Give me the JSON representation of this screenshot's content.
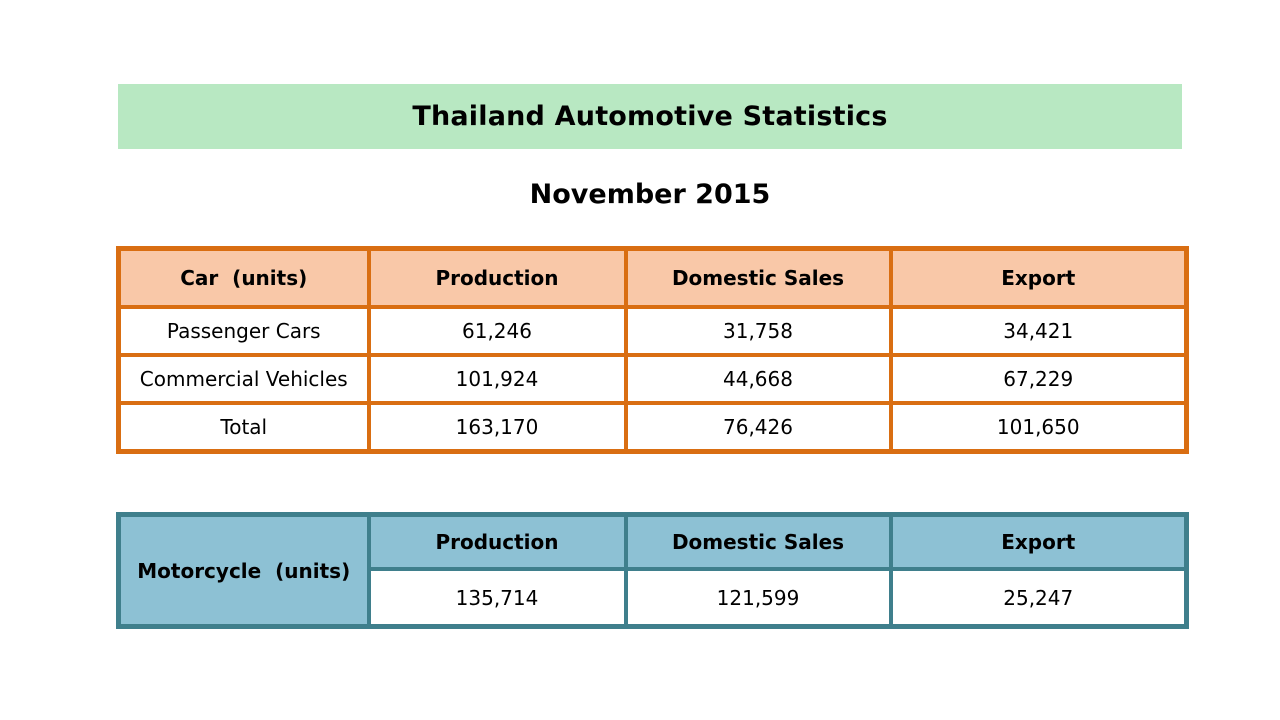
{
  "title": "Thailand Automotive Statistics",
  "period": "November 2015",
  "car_table": {
    "headers": [
      "Car  (units)",
      "Production",
      "Domestic Sales",
      "Export"
    ],
    "rows": [
      {
        "label": "Passenger Cars",
        "production": "61,246",
        "domestic_sales": "31,758",
        "export": "34,421"
      },
      {
        "label": "Commercial Vehicles",
        "production": "101,924",
        "domestic_sales": "44,668",
        "export": "67,229"
      },
      {
        "label": "Total",
        "production": "163,170",
        "domestic_sales": "76,426",
        "export": "101,650"
      }
    ]
  },
  "motorcycle_table": {
    "label": "Motorcycle  (units)",
    "headers": [
      "Production",
      "Domestic Sales",
      "Export"
    ],
    "values": {
      "production": "135,714",
      "domestic_sales": "121,599",
      "export": "25,247"
    }
  },
  "colors": {
    "title_banner": "#b8e8c2",
    "car_header": "#f9c8a8",
    "car_border": "#d96e12",
    "moto_header": "#8dc1d4",
    "moto_border": "#3f7f8c"
  }
}
